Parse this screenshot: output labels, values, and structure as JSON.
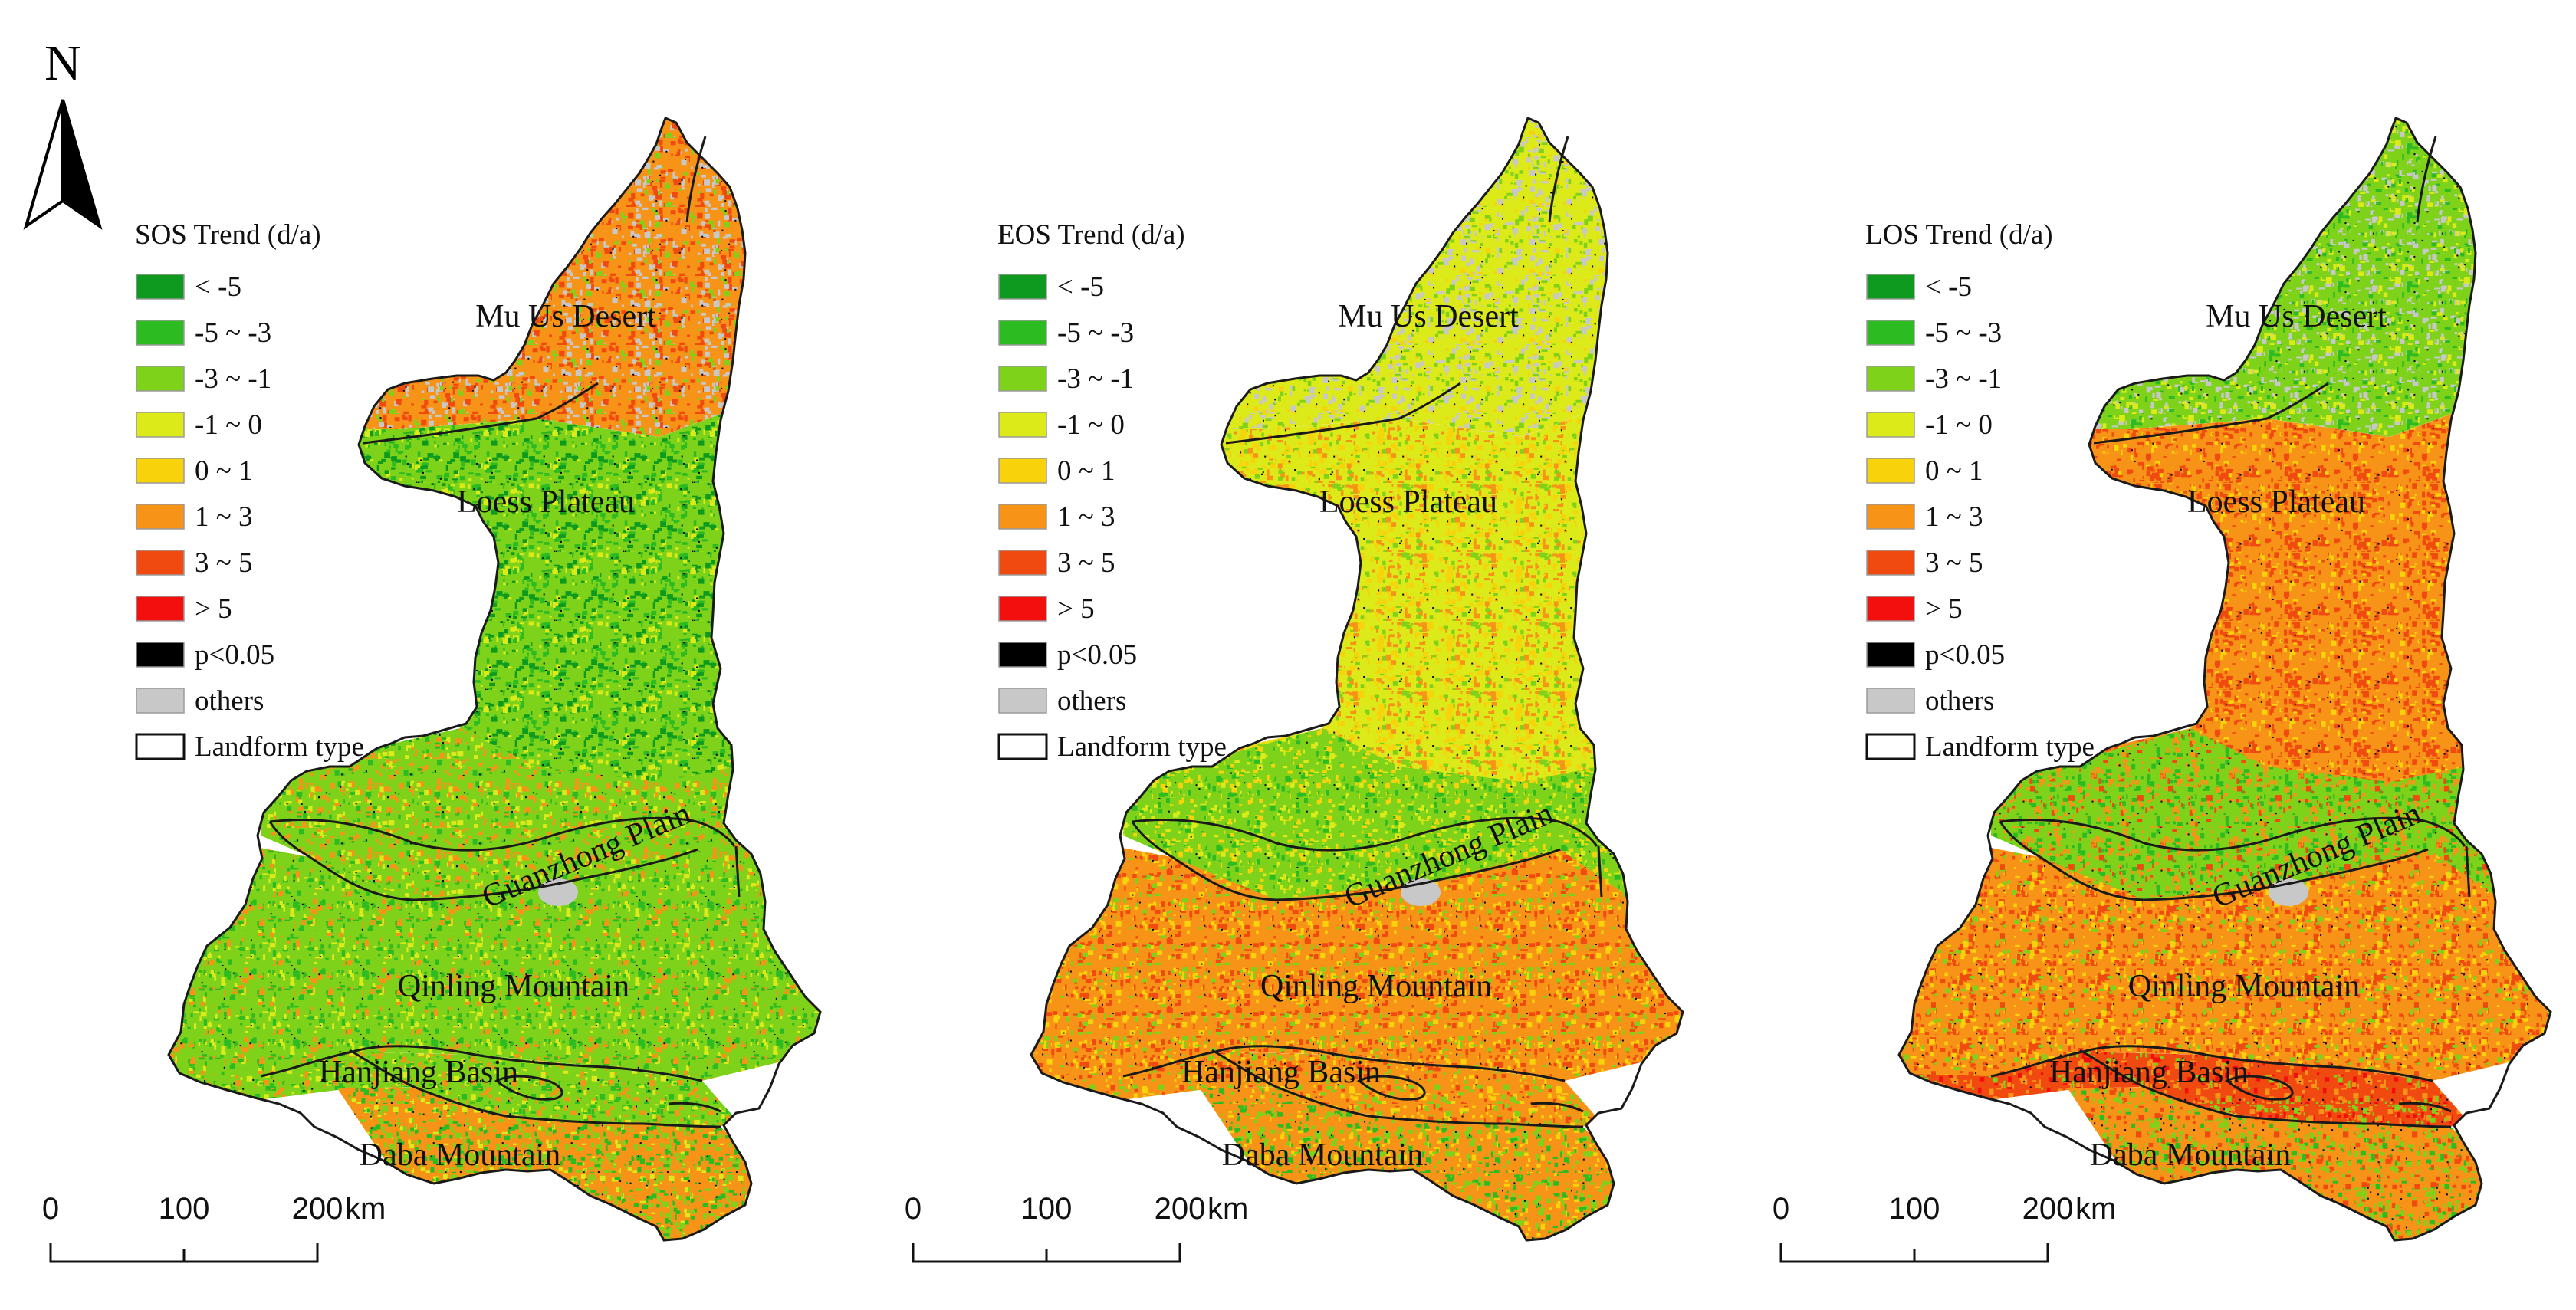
{
  "north_arrow": {
    "label": "N"
  },
  "palette": {
    "lt_m5": "#0e9a1e",
    "m5_m3": "#2dbb22",
    "m3_m1": "#7ed21a",
    "m1_0": "#dcea1a",
    "z0_1": "#f8d20a",
    "p1_3": "#f79418",
    "p3_5": "#f04a10",
    "gt5": "#f40f0f",
    "sig": "#000000",
    "others": "#c8c8c8",
    "boundary": "#000000"
  },
  "legend": {
    "items": [
      {
        "label": "< -5",
        "color_key": "lt_m5"
      },
      {
        "label": "-5 ~ -3",
        "color_key": "m5_m3"
      },
      {
        "label": "-3 ~ -1",
        "color_key": "m3_m1"
      },
      {
        "label": "-1 ~ 0",
        "color_key": "m1_0"
      },
      {
        "label": "0 ~ 1",
        "color_key": "z0_1"
      },
      {
        "label": "1 ~ 3",
        "color_key": "p1_3"
      },
      {
        "label": "3 ~ 5",
        "color_key": "p3_5"
      },
      {
        "label": "> 5",
        "color_key": "gt5"
      },
      {
        "label": "p<0.05",
        "color_key": "sig"
      },
      {
        "label": "others",
        "color_key": "others"
      },
      {
        "label": "Landform type",
        "color_key": "boundary"
      }
    ]
  },
  "regions": {
    "mu_us": "Mu Us Desert",
    "loess": "Loess Plateau",
    "guanzhong": "Guanzhong Plain",
    "qinling": "Qinling Mountain",
    "hanjiang": "Hanjiang Basin",
    "daba": "Daba Mountain"
  },
  "panels": [
    {
      "id": "sos",
      "legend_title": "SOS Trend (d/a)",
      "fill": {
        "mu_us": [
          "#f79418",
          "#c8c8c8",
          "#f04a10",
          "#7ed21a"
        ],
        "loess": [
          "#7ed21a",
          "#2dbb22",
          "#0e9a1e",
          "#dcea1a"
        ],
        "guanzhong": [
          "#7ed21a",
          "#f79418",
          "#2dbb22",
          "#dcea1a"
        ],
        "qinling": [
          "#7ed21a",
          "#2dbb22",
          "#f79418",
          "#dcea1a"
        ],
        "hanjiang": [
          "#7ed21a",
          "#f79418",
          "#2dbb22",
          "#dcea1a"
        ],
        "daba": [
          "#f79418",
          "#7ed21a",
          "#2dbb22",
          "#dcea1a"
        ]
      }
    },
    {
      "id": "eos",
      "legend_title": "EOS Trend (d/a)",
      "fill": {
        "mu_us": [
          "#dcea1a",
          "#c8c8c8",
          "#7ed21a",
          "#f8d20a"
        ],
        "loess": [
          "#dcea1a",
          "#f8d20a",
          "#f79418",
          "#7ed21a"
        ],
        "guanzhong": [
          "#7ed21a",
          "#dcea1a",
          "#2dbb22",
          "#f8d20a"
        ],
        "qinling": [
          "#f79418",
          "#f04a10",
          "#f8d20a",
          "#7ed21a"
        ],
        "hanjiang": [
          "#f79418",
          "#f04a10",
          "#7ed21a",
          "#f8d20a"
        ],
        "daba": [
          "#f79418",
          "#7ed21a",
          "#2dbb22",
          "#f8d20a"
        ]
      }
    },
    {
      "id": "los",
      "legend_title": "LOS Trend (d/a)",
      "fill": {
        "mu_us": [
          "#7ed21a",
          "#c8c8c8",
          "#2dbb22",
          "#dcea1a"
        ],
        "loess": [
          "#f79418",
          "#f04a10",
          "#f8d20a",
          "#f04a10"
        ],
        "guanzhong": [
          "#7ed21a",
          "#f79418",
          "#2dbb22",
          "#f04a10"
        ],
        "qinling": [
          "#f79418",
          "#f04a10",
          "#f8d20a",
          "#7ed21a"
        ],
        "hanjiang": [
          "#f04a10",
          "#f79418",
          "#f40f0f",
          "#7ed21a"
        ],
        "daba": [
          "#f79418",
          "#7ed21a",
          "#2dbb22",
          "#f04a10"
        ]
      }
    }
  ],
  "scale_bar": {
    "ticks": [
      "0",
      "100",
      "200"
    ],
    "unit": "km"
  }
}
